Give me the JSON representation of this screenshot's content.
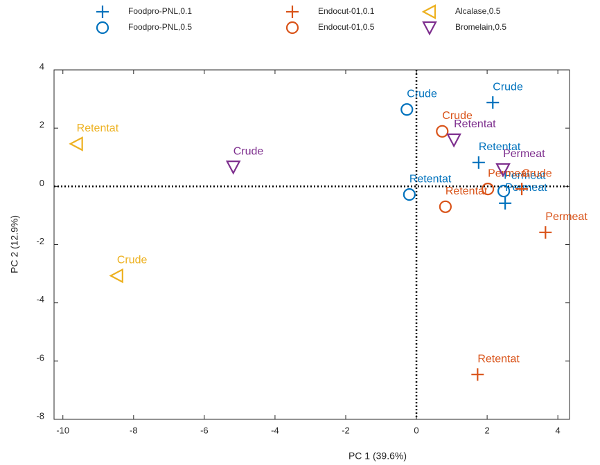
{
  "chart_data": {
    "type": "scatter",
    "xlabel": "PC 1 (39.6%)",
    "ylabel": "PC 2 (12.9%)",
    "xlim": [
      -10.25,
      4.33
    ],
    "ylim": [
      -8,
      4
    ],
    "xticks": [
      -10,
      -8,
      -6,
      -4,
      -2,
      0,
      2,
      4
    ],
    "yticks": [
      -8,
      -6,
      -4,
      -2,
      0,
      2,
      4
    ],
    "zero_lines": true,
    "series": [
      {
        "name": "Foodpro-PNL,0.1",
        "color": "#0072BD",
        "marker": "plus",
        "x": [
          2.16,
          1.76,
          2.51
        ],
        "values": [
          2.88,
          0.82,
          -0.58
        ],
        "labels": [
          "Crude",
          "Retentat",
          "Permeat"
        ]
      },
      {
        "name": "Foodpro-PNL,0.5",
        "color": "#0072BD",
        "marker": "circle",
        "x": [
          -0.27,
          -0.2,
          2.47
        ],
        "values": [
          2.64,
          -0.28,
          -0.16
        ],
        "labels": [
          "Crude",
          "Retentat",
          "Permeat"
        ]
      },
      {
        "name": "Endocut-01,0.1",
        "color": "#D95319",
        "marker": "plus",
        "x": [
          3.65,
          1.73,
          2.98
        ],
        "values": [
          -1.58,
          -6.46,
          -0.09
        ],
        "labels": [
          "Permeat",
          "Retentat",
          "Crude"
        ]
      },
      {
        "name": "Endocut-01,0.5",
        "color": "#D95319",
        "marker": "circle",
        "x": [
          0.73,
          0.82,
          2.02
        ],
        "values": [
          1.89,
          -0.7,
          -0.09
        ],
        "labels": [
          "Crude",
          "Retentat",
          "Permeat"
        ]
      },
      {
        "name": "Alcalase,0.5",
        "color": "#EDB120",
        "marker": "triangle-left",
        "x": [
          -9.61,
          -8.47
        ],
        "values": [
          1.46,
          -3.07
        ],
        "labels": [
          "Retentat",
          "Crude"
        ]
      },
      {
        "name": "Bromelain,0.5",
        "color": "#7E2F8E",
        "marker": "triangle-down",
        "x": [
          -5.18,
          1.06,
          2.45
        ],
        "values": [
          0.67,
          1.6,
          0.58
        ],
        "labels": [
          "Crude",
          "Retentat",
          "Permeat"
        ]
      }
    ]
  }
}
